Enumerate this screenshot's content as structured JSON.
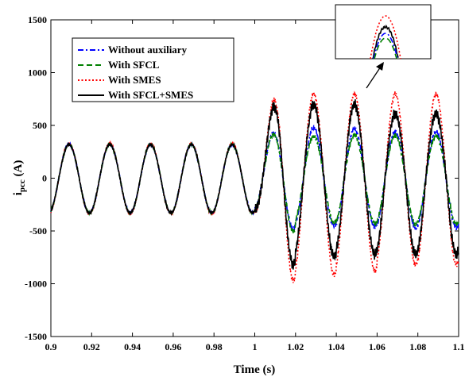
{
  "chart_data": {
    "type": "line",
    "title": "",
    "xlabel": "Time (s)",
    "ylabel": "i_pcc (A)",
    "ylabel_main": "i",
    "ylabel_sub": "pcc",
    "ylabel_unit": " (A)",
    "xlim": [
      0.9,
      1.1
    ],
    "ylim": [
      -1500,
      1500
    ],
    "x_ticks": [
      "0.9",
      "0.92",
      "0.94",
      "0.96",
      "0.98",
      "1",
      "1.02",
      "1.04",
      "1.06",
      "1.08",
      "1.1"
    ],
    "y_ticks": [
      "1500",
      "1000",
      "500",
      "0",
      "-500",
      "-1000",
      "-1500"
    ],
    "grid": false,
    "legend_position": "top-left",
    "fault_time": 1.0,
    "series": [
      {
        "name": "Without auxiliary",
        "color": "#0000ff",
        "style": "dash-dot",
        "prefault_amplitude": 320,
        "peak_values": [
          500,
          480,
          470,
          440
        ],
        "trough_values": [
          -480,
          -450,
          -460,
          -470
        ]
      },
      {
        "name": "With SFCL",
        "color": "#008000",
        "style": "dashed",
        "prefault_amplitude": 320,
        "peak_values": [
          470,
          400,
          410,
          400
        ],
        "trough_values": [
          -500,
          -420,
          -430,
          -440
        ]
      },
      {
        "name": "With SMES",
        "color": "#ff0000",
        "style": "dotted",
        "prefault_amplitude": 330,
        "peak_values": [
          1000,
          800,
          800,
          800
        ],
        "trough_values": [
          -970,
          -920,
          -880,
          -820
        ]
      },
      {
        "name": "With SFCL+SMES",
        "color": "#000000",
        "style": "solid",
        "prefault_amplitude": 320,
        "peak_values": [
          900,
          700,
          700,
          610
        ],
        "trough_values": [
          -820,
          -740,
          -720,
          -720
        ]
      }
    ],
    "inset": {
      "description_peaks": [
        "With SMES",
        "With SFCL+SMES",
        "Without auxiliary",
        "With SFCL"
      ]
    }
  }
}
